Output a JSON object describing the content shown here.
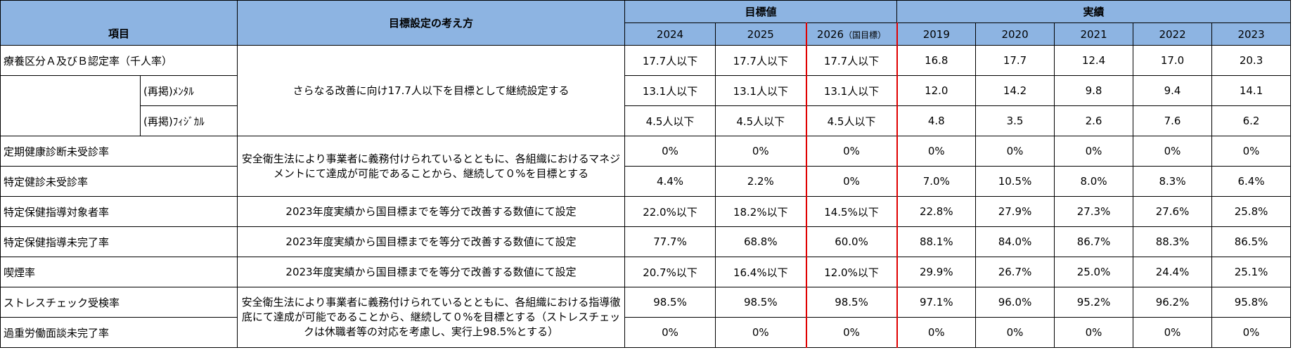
{
  "header": {
    "item": "項目",
    "approach": "目標設定の考え方",
    "target_group": "目標値",
    "actual_group": "実績",
    "target_years": [
      "2024",
      "2025",
      "2026"
    ],
    "target_note": "（国目標）",
    "actual_years": [
      "2019",
      "2020",
      "2021",
      "2022",
      "2023"
    ]
  },
  "rows": [
    {
      "item": "療養区分Ａ及びＢ認定率（千人率）",
      "approach": "さらなる改善に向け17.7人以下を目標として継続設定する",
      "values": [
        "17.7人以下",
        "17.7人以下",
        "17.7人以下",
        "16.8",
        "17.7",
        "12.4",
        "17.0",
        "20.3"
      ]
    },
    {
      "sub_item": "(再掲)ﾒﾝﾀﾙ",
      "values": [
        "13.1人以下",
        "13.1人以下",
        "13.1人以下",
        "12.0",
        "14.2",
        "9.8",
        "9.4",
        "14.1"
      ]
    },
    {
      "sub_item": "(再掲)ﾌｨｼﾞｶﾙ",
      "values": [
        "4.5人以下",
        "4.5人以下",
        "4.5人以下",
        "4.8",
        "3.5",
        "2.6",
        "7.6",
        "6.2"
      ]
    },
    {
      "item": "定期健康診断未受診率",
      "approach": "安全衛生法により事業者に義務付けられているとともに、各組織におけるマネジメントにて達成が可能であることから、継続して０%を目標とする",
      "values": [
        "0%",
        "0%",
        "0%",
        "0%",
        "0%",
        "0%",
        "0%",
        "0%"
      ]
    },
    {
      "item": "特定健診未受診率",
      "values": [
        "4.4%",
        "2.2%",
        "0%",
        "7.0%",
        "10.5%",
        "8.0%",
        "8.3%",
        "6.4%"
      ]
    },
    {
      "item": "特定保健指導対象者率",
      "approach": "2023年度実績から国目標までを等分で改善する数値にて設定",
      "values": [
        "22.0%以下",
        "18.2%以下",
        "14.5%以下",
        "22.8%",
        "27.9%",
        "27.3%",
        "27.6%",
        "25.8%"
      ]
    },
    {
      "item": "特定保健指導未完了率",
      "approach": "2023年度実績から国目標までを等分で改善する数値にて設定",
      "values": [
        "77.7%",
        "68.8%",
        "60.0%",
        "88.1%",
        "84.0%",
        "86.7%",
        "88.3%",
        "86.5%"
      ]
    },
    {
      "item": "喫煙率",
      "approach": "2023年度実績から国目標までを等分で改善する数値にて設定",
      "values": [
        "20.7%以下",
        "16.4%以下",
        "12.0%以下",
        "29.9%",
        "26.7%",
        "25.0%",
        "24.4%",
        "25.1%"
      ]
    },
    {
      "item": "ストレスチェック受検率",
      "approach": "安全衛生法により事業者に義務付けられているとともに、各組織における指導徹底にて達成が可能であることから、継続して０%を目標とする（ストレスチェックは休職者等の対応を考慮し、実行上98.5%とする）",
      "values": [
        "98.5%",
        "98.5%",
        "98.5%",
        "97.1%",
        "96.0%",
        "95.2%",
        "96.2%",
        "95.8%"
      ]
    },
    {
      "item": "過重労働面談未完了率",
      "values": [
        "0%",
        "0%",
        "0%",
        "0%",
        "0%",
        "0%",
        "0%",
        "0%"
      ]
    }
  ]
}
